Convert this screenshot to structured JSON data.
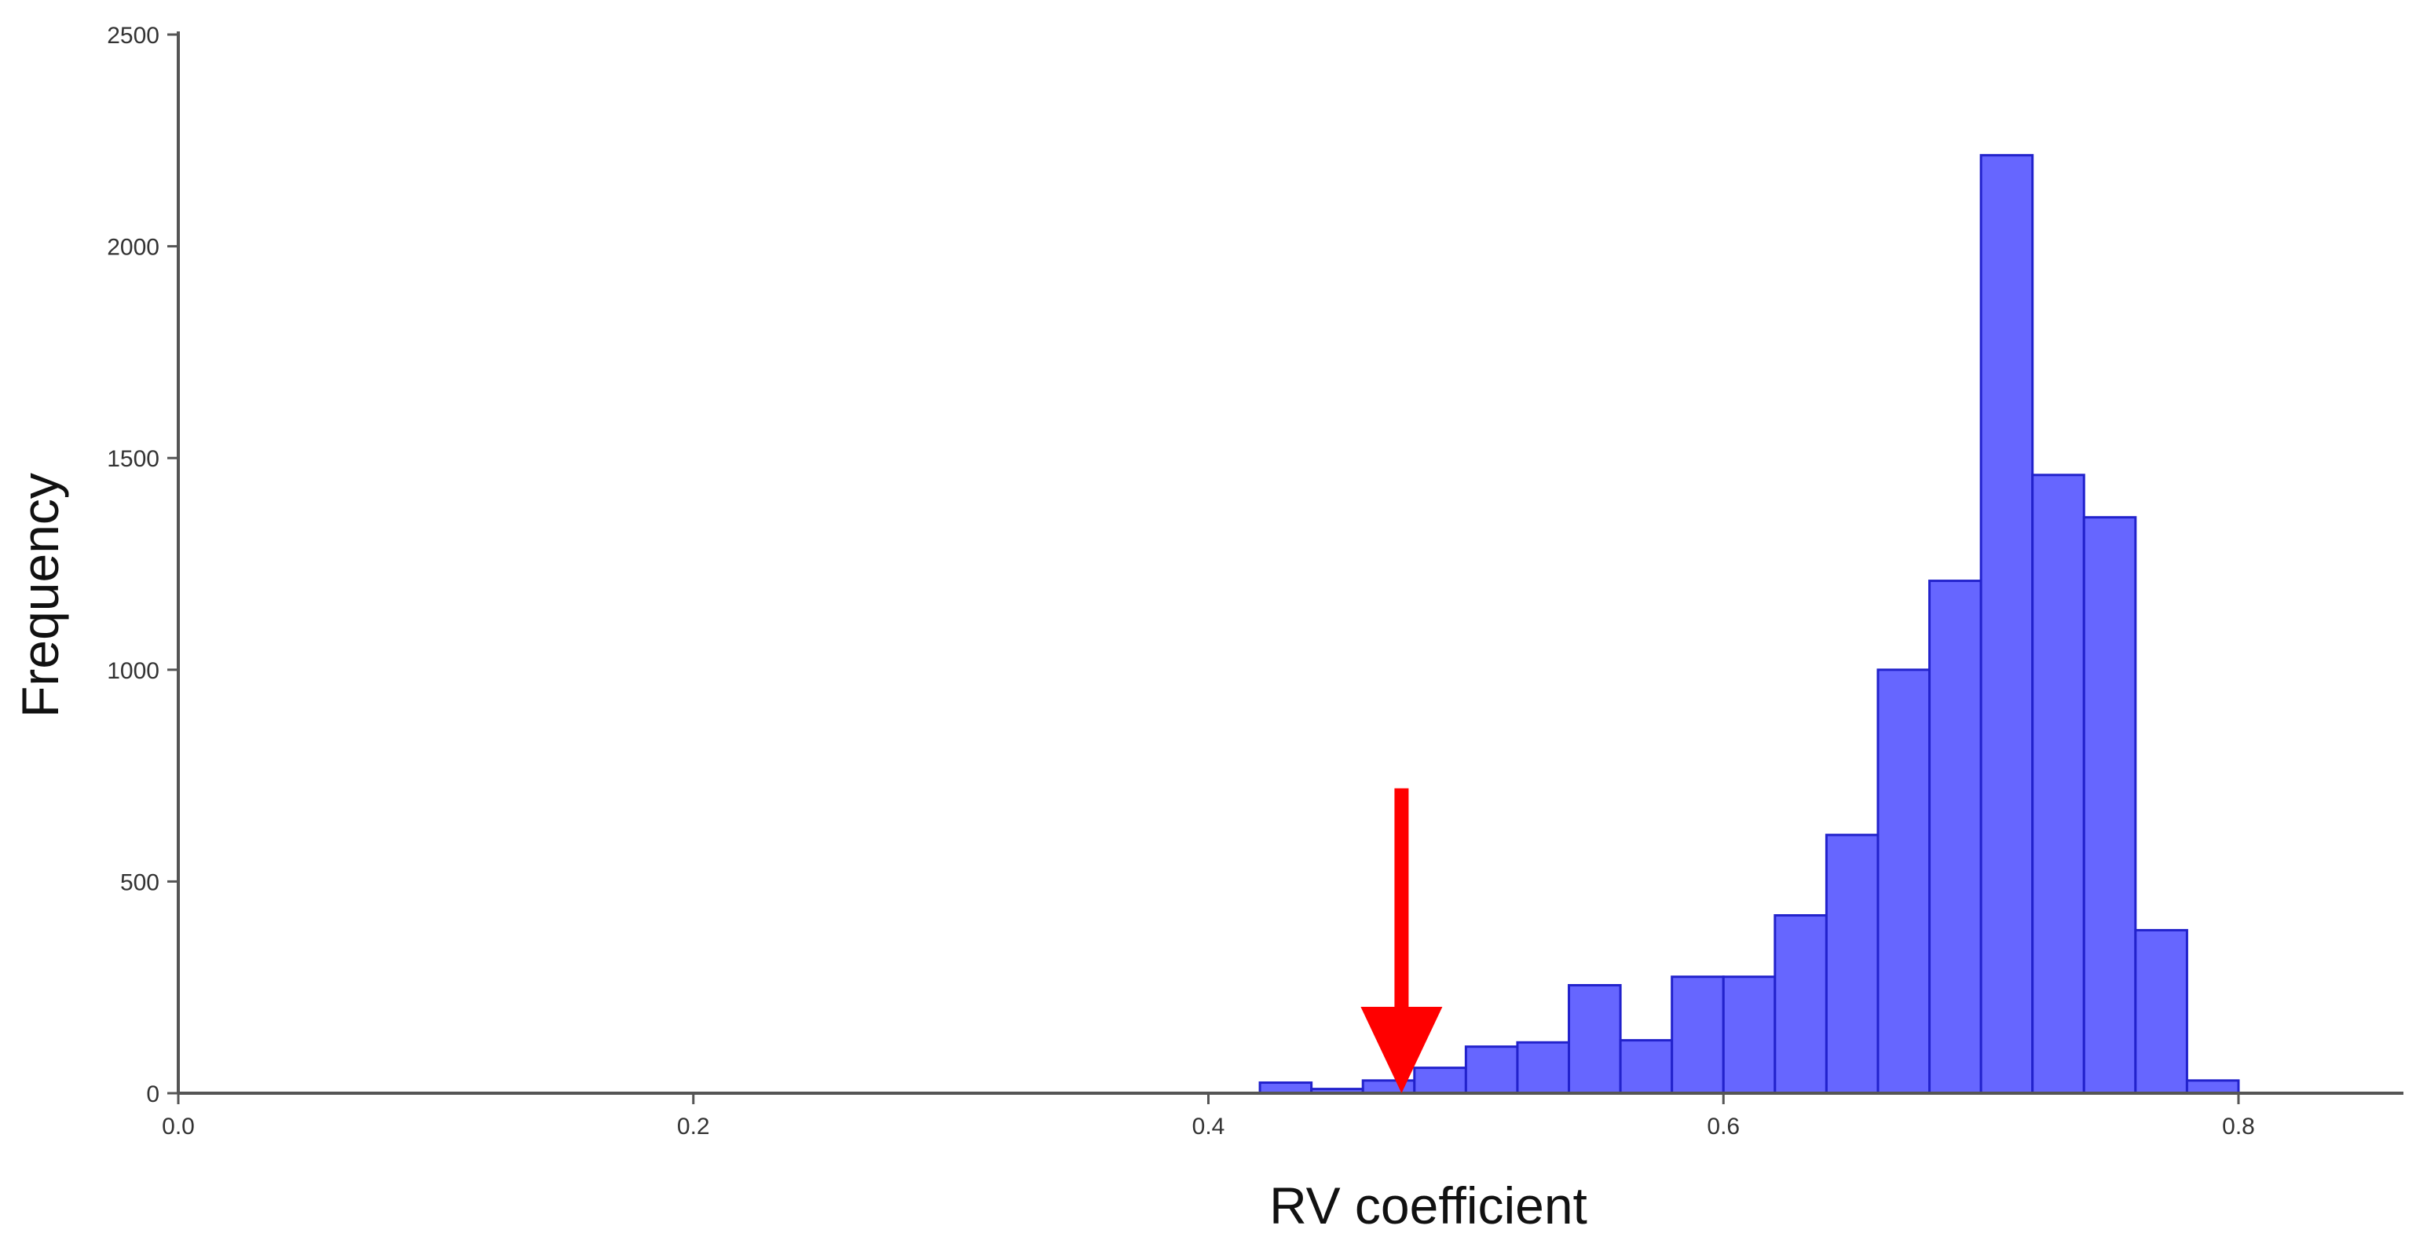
{
  "chart_data": {
    "type": "bar",
    "subtype": "histogram",
    "title": "",
    "xlabel": "RV coefficient",
    "ylabel": "Frequency",
    "xlim": [
      0.0,
      0.86
    ],
    "ylim": [
      0,
      2500
    ],
    "x_ticks": [
      0.0,
      0.2,
      0.4,
      0.6,
      0.8
    ],
    "x_tick_labels": [
      "0.0",
      "0.2",
      "0.4",
      "0.6",
      "0.8"
    ],
    "y_ticks": [
      0,
      500,
      1000,
      1500,
      2000,
      2500
    ],
    "y_tick_labels": [
      "0",
      "500",
      "1000",
      "1500",
      "2000",
      "2500"
    ],
    "grid": false,
    "legend": "none",
    "bin_width": 0.02,
    "bins": [
      {
        "x0": 0.42,
        "x1": 0.44,
        "count": 25
      },
      {
        "x0": 0.44,
        "x1": 0.46,
        "count": 10
      },
      {
        "x0": 0.46,
        "x1": 0.48,
        "count": 30
      },
      {
        "x0": 0.48,
        "x1": 0.5,
        "count": 60
      },
      {
        "x0": 0.5,
        "x1": 0.52,
        "count": 110
      },
      {
        "x0": 0.52,
        "x1": 0.54,
        "count": 120
      },
      {
        "x0": 0.54,
        "x1": 0.56,
        "count": 255
      },
      {
        "x0": 0.56,
        "x1": 0.58,
        "count": 125
      },
      {
        "x0": 0.58,
        "x1": 0.6,
        "count": 275
      },
      {
        "x0": 0.6,
        "x1": 0.62,
        "count": 275
      },
      {
        "x0": 0.62,
        "x1": 0.64,
        "count": 420
      },
      {
        "x0": 0.64,
        "x1": 0.66,
        "count": 610
      },
      {
        "x0": 0.66,
        "x1": 0.68,
        "count": 1000
      },
      {
        "x0": 0.68,
        "x1": 0.7,
        "count": 1210
      },
      {
        "x0": 0.7,
        "x1": 0.72,
        "count": 2215
      },
      {
        "x0": 0.72,
        "x1": 0.74,
        "count": 1460
      },
      {
        "x0": 0.74,
        "x1": 0.76,
        "count": 1360
      },
      {
        "x0": 0.76,
        "x1": 0.78,
        "count": 385
      },
      {
        "x0": 0.78,
        "x1": 0.8,
        "count": 30
      }
    ],
    "annotations": [
      {
        "type": "arrow",
        "points_to_x": 0.475,
        "tail_y": 720,
        "head_y": 0,
        "color": "#ff0000"
      }
    ],
    "colors": {
      "bar_fill": "#6666ff",
      "bar_stroke": "#2222cc",
      "arrow": "#ff0000"
    }
  }
}
